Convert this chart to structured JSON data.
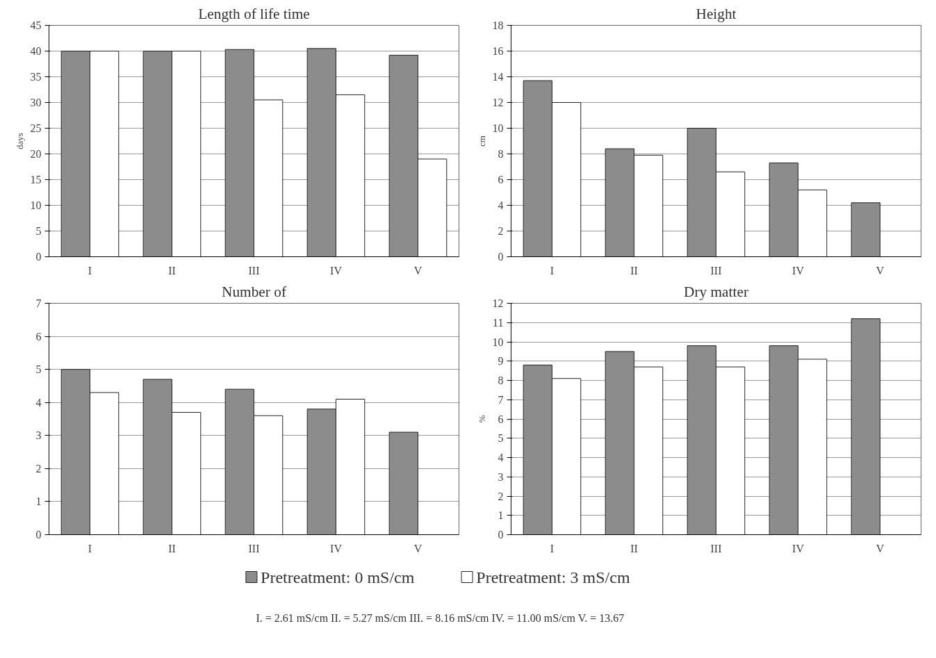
{
  "chart_data": [
    {
      "type": "bar",
      "title": "Length of life time",
      "ylabel": "days",
      "categories": [
        "I",
        "II",
        "III",
        "IV",
        "V"
      ],
      "ylim": [
        0,
        45
      ],
      "yticks": [
        0,
        5,
        10,
        15,
        20,
        25,
        30,
        35,
        40,
        45
      ],
      "grid": "y",
      "legend": false,
      "series": [
        {
          "color": "#8c8c8c",
          "values": [
            40,
            40,
            40.3,
            40.5,
            39.2
          ]
        },
        {
          "color": "#ffffff",
          "values": [
            40,
            40,
            30.5,
            31.5,
            19
          ]
        }
      ]
    },
    {
      "type": "bar",
      "title": "Height",
      "ylabel": "cm",
      "categories": [
        "I",
        "II",
        "III",
        "IV",
        "V"
      ],
      "ylim": [
        0,
        18
      ],
      "yticks": [
        0,
        2,
        4,
        6,
        8,
        10,
        12,
        14,
        16,
        18
      ],
      "grid": "y",
      "legend": false,
      "series": [
        {
          "color": "#8c8c8c",
          "values": [
            13.7,
            8.4,
            10,
            7.3,
            4.2
          ]
        },
        {
          "color": "#ffffff",
          "values": [
            12,
            7.9,
            6.6,
            5.2,
            null
          ]
        }
      ]
    },
    {
      "type": "bar",
      "title": "Number of",
      "categories": [
        "I",
        "II",
        "III",
        "IV",
        "V"
      ],
      "ylim": [
        0,
        7
      ],
      "yticks": [
        0,
        1,
        2,
        3,
        4,
        5,
        6,
        7
      ],
      "grid": "y",
      "legend": false,
      "series": [
        {
          "color": "#8c8c8c",
          "values": [
            5,
            4.7,
            4.4,
            3.8,
            3.1
          ]
        },
        {
          "color": "#ffffff",
          "values": [
            4.3,
            3.7,
            3.6,
            4.1,
            null
          ]
        }
      ]
    },
    {
      "type": "bar",
      "title": "Dry matter",
      "ylabel": "%",
      "categories": [
        "I",
        "II",
        "III",
        "IV",
        "V"
      ],
      "ylim": [
        0,
        12
      ],
      "yticks": [
        0,
        1,
        2,
        3,
        4,
        5,
        6,
        7,
        8,
        9,
        10,
        11,
        12
      ],
      "grid": "y",
      "legend": "bottom",
      "annotations": [
        "I. = 2.61 mS/cm     II. = 5.27 mS/cm     III. = 8.16 mS/cm     IV. = 11.00 mS/cm     V. = 13.67"
      ],
      "series": [
        {
          "name": "Pretreatment: 0 mS/cm",
          "color": "#8c8c8c",
          "values": [
            8.8,
            9.5,
            9.8,
            9.8,
            11.2
          ]
        },
        {
          "name": "Pretreatment: 3 mS/cm",
          "color": "#ffffff",
          "values": [
            8.1,
            8.7,
            8.7,
            9.1,
            null
          ]
        }
      ]
    }
  ]
}
